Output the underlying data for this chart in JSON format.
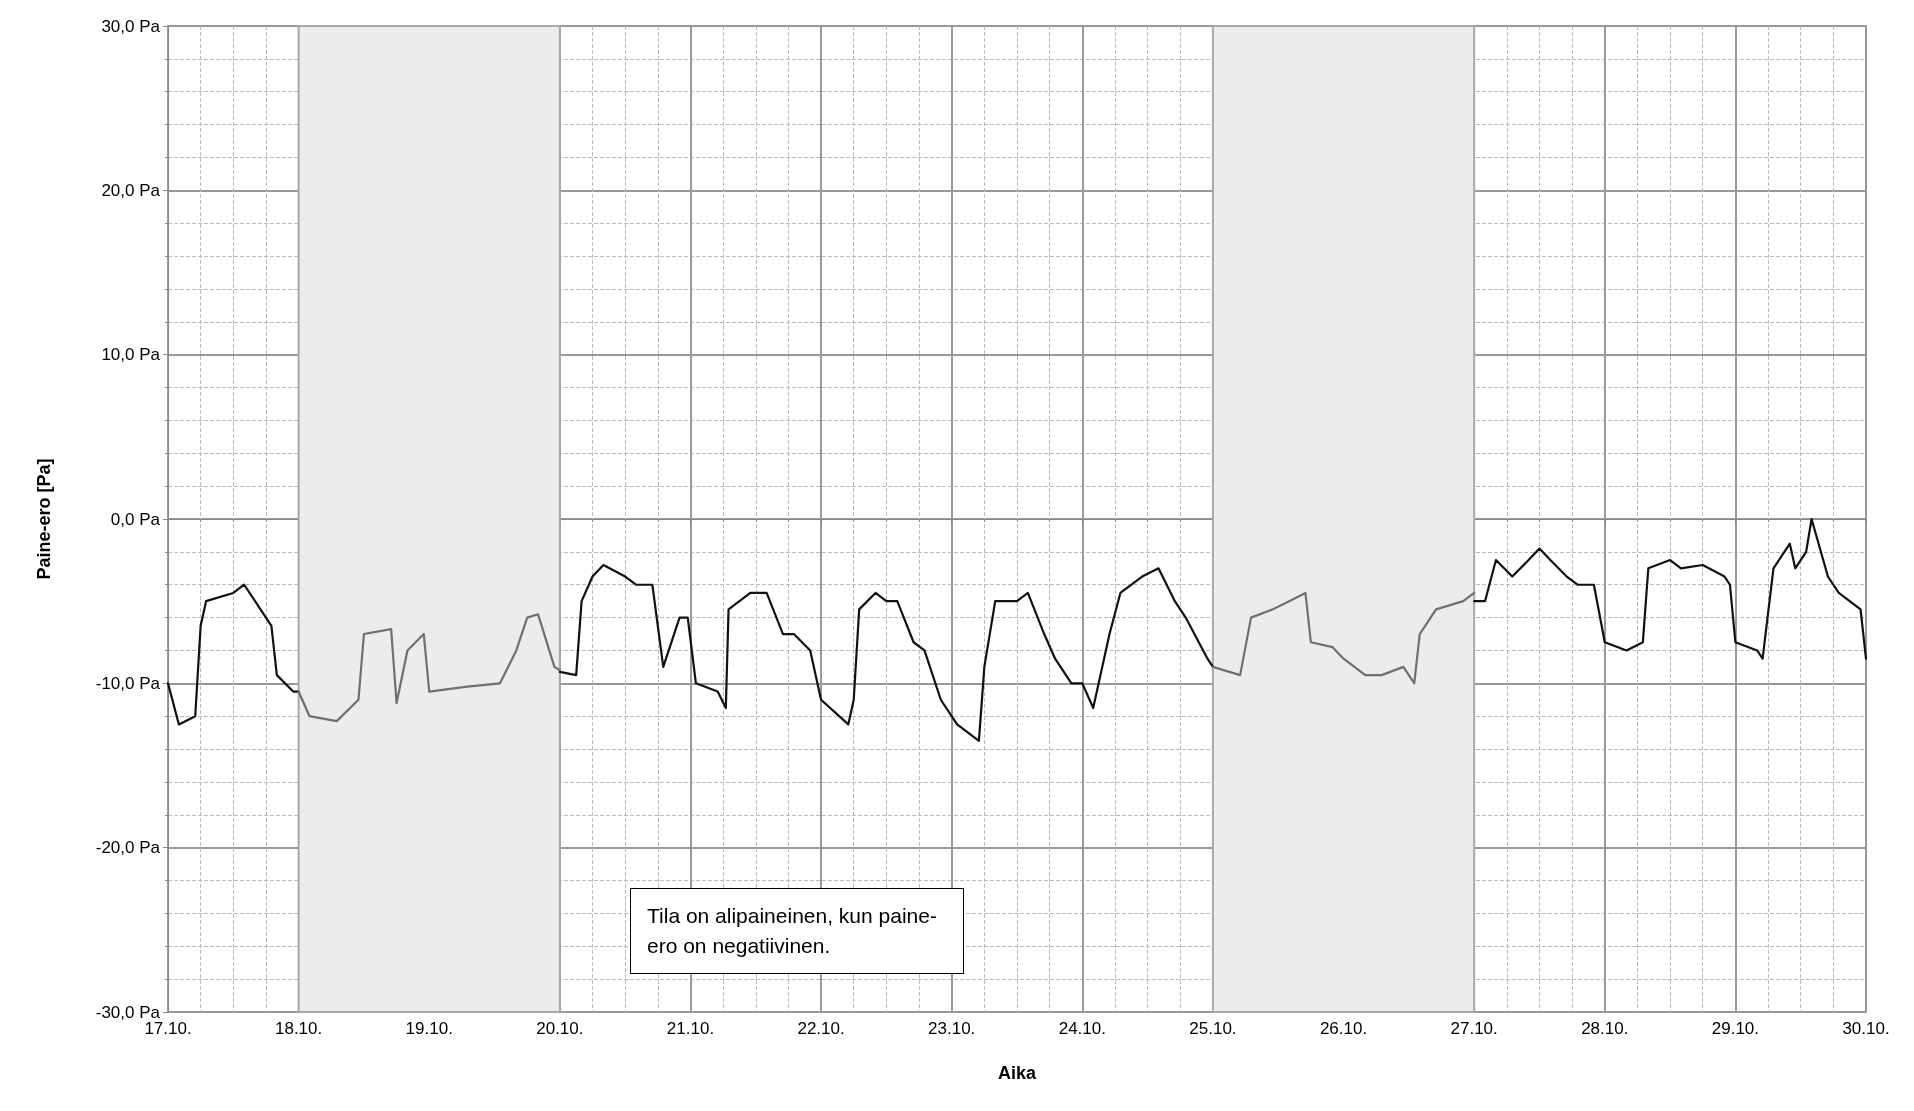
{
  "chart_data": {
    "type": "line",
    "xlabel": "Aika",
    "ylabel": "Paine-ero [Pa]",
    "xlim": [
      "--10-17",
      "--10-30"
    ],
    "xticks": [
      {
        "value": "--10-17",
        "label": "17.10."
      },
      {
        "value": "--10-18",
        "label": "18.10."
      },
      {
        "value": "--10-19",
        "label": "19.10."
      },
      {
        "value": "--10-20",
        "label": "20.10."
      },
      {
        "value": "--10-21",
        "label": "21.10."
      },
      {
        "value": "--10-22",
        "label": "22.10."
      },
      {
        "value": "--10-23",
        "label": "23.10."
      },
      {
        "value": "--10-24",
        "label": "24.10."
      },
      {
        "value": "--10-25",
        "label": "25.10."
      },
      {
        "value": "--10-26",
        "label": "26.10."
      },
      {
        "value": "--10-27",
        "label": "27.10."
      },
      {
        "value": "--10-28",
        "label": "28.10."
      },
      {
        "value": "--10-29",
        "label": "29.10."
      },
      {
        "value": "--10-30",
        "label": "30.10."
      }
    ],
    "ylim": [
      -30,
      30
    ],
    "yticks": [
      {
        "value": -30,
        "label": "-30,0 Pa"
      },
      {
        "value": -20,
        "label": "-20,0 Pa"
      },
      {
        "value": -10,
        "label": "-10,0 Pa"
      },
      {
        "value": 0,
        "label": "0,0 Pa"
      },
      {
        "value": 10,
        "label": "10,0 Pa"
      },
      {
        "value": 20,
        "label": "20,0 Pa"
      },
      {
        "value": 30,
        "label": "30,0 Pa"
      }
    ],
    "grid": true,
    "marker": "none",
    "line_style": "solid",
    "bands": [
      {
        "axis": "x",
        "from": "--10-18",
        "to": "--10-20",
        "color": "#ececec"
      },
      {
        "axis": "x",
        "from": "--10-25",
        "to": "--10-27",
        "color": "#ececec"
      }
    ],
    "annotations": [
      "Tila on alipaineinen, kun paine-ero on negatiivinen."
    ],
    "series": [
      {
        "color": "#111111",
        "x": [
          "--10-17T00:00",
          "--10-17T02:00",
          "--10-17T05:00",
          "--10-17T06:00",
          "--10-17T07:00",
          "--10-17T12:00",
          "--10-17T14:00",
          "--10-17T17:00",
          "--10-17T19:00",
          "--10-17T20:00",
          "--10-17T23:00",
          "--10-18T00:00",
          "--10-19T00:00",
          "--10-20T00:00",
          "--10-20T03:00",
          "--10-20T04:00",
          "--10-20T06:00",
          "--10-20T08:00",
          "--10-20T12:00",
          "--10-20T14:00",
          "--10-20T17:00",
          "--10-20T19:00",
          "--10-20T22:00",
          "--10-20T23:30",
          "--10-21T01:00",
          "--10-21T05:00",
          "--10-21T06:30",
          "--10-21T07:00",
          "--10-21T11:00",
          "--10-21T14:00",
          "--10-21T17:00",
          "--10-21T19:00",
          "--10-21T22:00",
          "--10-22T00:00",
          "--10-22T05:00",
          "--10-22T06:00",
          "--10-22T07:00",
          "--10-22T10:00",
          "--10-22T12:00",
          "--10-22T14:00",
          "--10-22T17:00",
          "--10-22T19:00",
          "--10-22T22:00",
          "--10-23T01:00",
          "--10-23T05:00",
          "--10-23T06:00",
          "--10-23T08:00",
          "--10-23T12:00",
          "--10-23T14:00",
          "--10-23T17:00",
          "--10-23T19:00",
          "--10-23T22:00",
          "--10-24T00:00",
          "--10-24T02:00",
          "--10-24T05:00",
          "--10-24T07:00",
          "--10-24T11:00",
          "--10-24T14:00",
          "--10-24T17:00",
          "--10-24T19:00",
          "--10-24T23:00",
          "--10-25T00:00",
          "--10-26T00:00",
          "--10-27T00:00",
          "--10-27T02:00",
          "--10-27T04:00",
          "--10-27T07:00",
          "--10-27T10:00",
          "--10-27T12:00",
          "--10-27T14:00",
          "--10-27T17:00",
          "--10-27T19:00",
          "--10-27T22:00",
          "--10-28T00:00",
          "--10-28T04:00",
          "--10-28T07:00",
          "--10-28T08:00",
          "--10-28T12:00",
          "--10-28T14:00",
          "--10-28T18:00",
          "--10-28T22:00",
          "--10-28T23:00",
          "--10-29T00:00",
          "--10-29T04:00",
          "--10-29T05:00",
          "--10-29T07:00",
          "--10-29T10:00",
          "--10-29T11:00",
          "--10-29T13:00",
          "--10-29T14:00",
          "--10-29T17:00",
          "--10-29T19:00",
          "--10-29T23:00",
          "--10-30T00:00"
        ],
        "values": [
          -10,
          -12.5,
          -12,
          -6.5,
          -5,
          -4.5,
          -4,
          -5.5,
          -6.5,
          -9.5,
          -10.5,
          -10.5,
          null,
          -9.3,
          -9.5,
          -5,
          -3.5,
          -2.8,
          -3.5,
          -4,
          -4,
          -9,
          -6,
          -6,
          -10,
          -10.5,
          -11.5,
          -5.5,
          -4.5,
          -4.5,
          -7,
          -7,
          -8,
          -11,
          -12.5,
          -11,
          -5.5,
          -4.5,
          -5,
          -5,
          -7.5,
          -8,
          -11,
          -12.5,
          -13.5,
          -9,
          -5,
          -5,
          -4.5,
          -7,
          -8.5,
          -10,
          -10,
          -11.5,
          -7,
          -4.5,
          -3.5,
          -3,
          -5,
          -6,
          -8.5,
          -9,
          null,
          -5,
          -5,
          -2.5,
          -3.5,
          -2.5,
          -1.8,
          -2.5,
          -3.5,
          -4,
          -4,
          -7.5,
          -8,
          -7.5,
          -3,
          -2.5,
          -3,
          -2.8,
          -3.5,
          -4,
          -7.5,
          -8,
          -8.5,
          -3,
          -1.5,
          -3,
          -2,
          0,
          -3.5,
          -4.5,
          -5.5,
          -8.5
        ]
      },
      {
        "color": "#707070",
        "x": [
          "--10-18T00:00",
          "--10-18T02:00",
          "--10-18T07:00",
          "--10-18T11:00",
          "--10-18T12:00",
          "--10-18T17:00",
          "--10-18T18:00",
          "--10-18T20:00",
          "--10-18T23:00",
          "--10-19T00:00",
          "--10-19T07:00",
          "--10-19T13:00",
          "--10-19T16:00",
          "--10-19T18:00",
          "--10-19T20:00",
          "--10-19T23:00",
          "--10-20T00:00",
          "--10-22T00:00",
          "--10-25T00:00",
          "--10-25T05:00",
          "--10-25T07:00",
          "--10-25T11:00",
          "--10-25T14:00",
          "--10-25T17:00",
          "--10-25T18:00",
          "--10-25T22:00",
          "--10-26T00:00",
          "--10-26T04:00",
          "--10-26T07:00",
          "--10-26T11:00",
          "--10-26T13:00",
          "--10-26T14:00",
          "--10-26T17:00",
          "--10-26T22:00",
          "--10-27T00:00"
        ],
        "values": [
          -10.5,
          -12,
          -12.3,
          -11,
          -7,
          -6.7,
          -11.2,
          -8,
          -7,
          -10.5,
          -10.2,
          -10,
          -8,
          -6,
          -5.8,
          -9,
          -9.2,
          null,
          -9,
          -9.5,
          -6,
          -5.5,
          -5,
          -4.5,
          -7.5,
          -7.8,
          -8.5,
          -9.5,
          -9.5,
          -9,
          -10,
          -7,
          -5.5,
          -5,
          -4.5
        ]
      }
    ]
  }
}
